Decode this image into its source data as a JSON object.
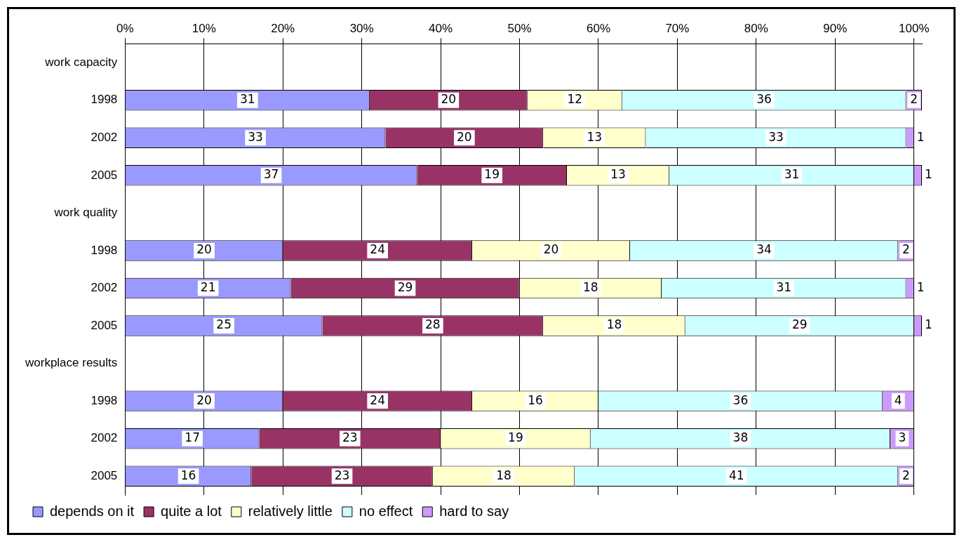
{
  "chart_data": {
    "type": "bar",
    "orientation": "horizontal",
    "stacked": true,
    "categories": [
      "work capacity",
      "1998",
      "2002",
      "2005",
      "work quality",
      "1998",
      "2002",
      "2005",
      "workplace results",
      "1998",
      "2002",
      "2005"
    ],
    "series": [
      {
        "name": "depends on it",
        "color": "#9999ff",
        "values": [
          null,
          31,
          33,
          37,
          null,
          20,
          21,
          25,
          null,
          20,
          17,
          16
        ]
      },
      {
        "name": "quite a lot",
        "color": "#993366",
        "values": [
          null,
          20,
          20,
          19,
          null,
          24,
          29,
          28,
          null,
          24,
          23,
          23
        ]
      },
      {
        "name": "relatively little",
        "color": "#ffffcc",
        "values": [
          null,
          12,
          13,
          13,
          null,
          20,
          18,
          18,
          null,
          16,
          19,
          18
        ]
      },
      {
        "name": "no effect",
        "color": "#ccffff",
        "values": [
          null,
          36,
          33,
          31,
          null,
          34,
          31,
          29,
          null,
          36,
          38,
          41
        ]
      },
      {
        "name": "hard to say",
        "color": "#cc99ff",
        "values": [
          null,
          2,
          1,
          1,
          null,
          2,
          1,
          1,
          null,
          4,
          3,
          2
        ]
      }
    ],
    "xlim": [
      0,
      101
    ],
    "xticks": [
      {
        "value": 0,
        "label": "0%"
      },
      {
        "value": 10,
        "label": "10%"
      },
      {
        "value": 20,
        "label": "20%"
      },
      {
        "value": 30,
        "label": "30%"
      },
      {
        "value": 40,
        "label": "40%"
      },
      {
        "value": 50,
        "label": "50%"
      },
      {
        "value": 60,
        "label": "60%"
      },
      {
        "value": 70,
        "label": "70%"
      },
      {
        "value": 80,
        "label": "80%"
      },
      {
        "value": 90,
        "label": "90%"
      },
      {
        "value": 100,
        "label": "100%"
      }
    ],
    "grid": "x",
    "legend": "bottom",
    "data_labels": true
  }
}
